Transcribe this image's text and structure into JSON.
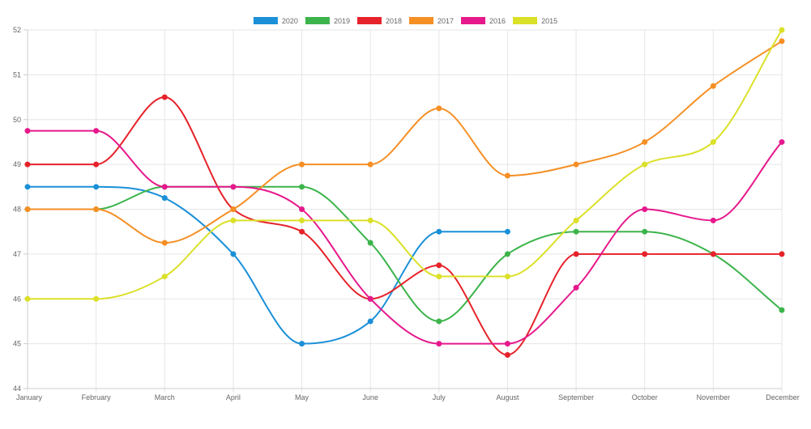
{
  "chart_data": {
    "type": "line",
    "title": "",
    "xlabel": "",
    "ylabel": "",
    "categories": [
      "January",
      "February",
      "March",
      "April",
      "May",
      "June",
      "July",
      "August",
      "September",
      "October",
      "November",
      "December"
    ],
    "yticks": [
      "44",
      "45",
      "46",
      "47",
      "48",
      "49",
      "50",
      "51",
      "52"
    ],
    "ylim": [
      44,
      52
    ],
    "grid": true,
    "legend": "top-center",
    "curve": "smooth",
    "series": [
      {
        "name": "2020",
        "color": "#1a90d8",
        "values": [
          48.5,
          48.5,
          48.25,
          47,
          45,
          45.5,
          47.5,
          47.5,
          null,
          null,
          null,
          null
        ]
      },
      {
        "name": "2019",
        "color": "#3cb44b",
        "values": [
          48,
          48,
          48.5,
          48.5,
          48.5,
          47.25,
          45.5,
          47,
          47.5,
          47.5,
          47,
          45.75
        ]
      },
      {
        "name": "2018",
        "color": "#e6222a",
        "values": [
          49,
          49,
          50.5,
          48,
          47.5,
          46,
          46.75,
          44.75,
          47,
          47,
          47,
          47
        ]
      },
      {
        "name": "2017",
        "color": "#f58f24",
        "values": [
          48,
          48,
          47.25,
          48,
          49,
          49,
          50.25,
          48.75,
          49,
          49.5,
          50.75,
          51.75
        ]
      },
      {
        "name": "2016",
        "color": "#e6198c",
        "values": [
          49.75,
          49.75,
          48.5,
          48.5,
          48,
          46,
          45,
          45,
          46.25,
          48,
          47.75,
          49.5
        ]
      },
      {
        "name": "2015",
        "color": "#dbe028",
        "values": [
          46,
          46,
          46.5,
          47.75,
          47.75,
          47.75,
          46.5,
          46.5,
          47.75,
          49,
          49.5,
          52
        ]
      }
    ]
  }
}
